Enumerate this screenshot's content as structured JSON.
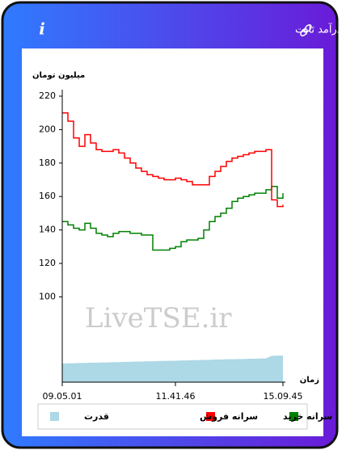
{
  "header": {
    "title": "سرانه ی خرید و فروش حقیقی در صندوق های درآمد ثابت"
  },
  "chart_data": {
    "type": "line",
    "y_label": "میلیون تومان",
    "x_label": "زمان",
    "watermark": "LiveTSE.ir",
    "categories": [
      "09.05.01",
      null,
      null,
      null,
      null,
      null,
      null,
      null,
      null,
      null,
      null,
      null,
      null,
      null,
      null,
      null,
      null,
      null,
      null,
      null,
      "11.41.46",
      null,
      null,
      null,
      null,
      null,
      null,
      null,
      null,
      null,
      null,
      null,
      null,
      null,
      null,
      null,
      null,
      null,
      null,
      "15.09.45"
    ],
    "series": [
      {
        "name": "سرانه خرید",
        "color": "#008000",
        "values": [
          145,
          143,
          141,
          140,
          144,
          141,
          138,
          137,
          136,
          138,
          139,
          139,
          138,
          138,
          137,
          137,
          128,
          128,
          128,
          129,
          130,
          133,
          134,
          134,
          135,
          140,
          145,
          148,
          150,
          153,
          157,
          159,
          160,
          161,
          162,
          162,
          164,
          166,
          159,
          162
        ]
      },
      {
        "name": "سرانه فروش",
        "color": "#ff0000",
        "values": [
          210,
          205,
          195,
          190,
          197,
          192,
          188,
          187,
          187,
          188,
          186,
          183,
          180,
          177,
          175,
          173,
          172,
          171,
          170,
          170,
          171,
          170,
          169,
          167,
          167,
          167,
          172,
          175,
          178,
          181,
          183,
          184,
          185,
          186,
          187,
          187,
          188,
          158,
          154,
          155
        ]
      },
      {
        "name": "قدرت",
        "color": "#add8e6",
        "axis": "y2",
        "values": [
          6.5,
          6.6,
          6.6,
          6.7,
          6.7,
          6.8,
          6.8,
          6.9,
          6.9,
          7,
          7,
          7.1,
          7.1,
          7.2,
          7.2,
          7.3,
          7.3,
          7.4,
          7.4,
          7.5,
          7.5,
          7.6,
          7.6,
          7.7,
          7.7,
          7.8,
          7.8,
          7.9,
          7.9,
          8,
          8,
          8.1,
          8.1,
          8.2,
          8.2,
          8.3,
          8.3,
          9.2,
          9.3,
          9.3
        ]
      }
    ],
    "ylim": [
      49,
      220
    ],
    "yticks": [
      100,
      120,
      140,
      160,
      180,
      200,
      220
    ],
    "y2lim": [
      0,
      100
    ],
    "legend": "bottom"
  }
}
